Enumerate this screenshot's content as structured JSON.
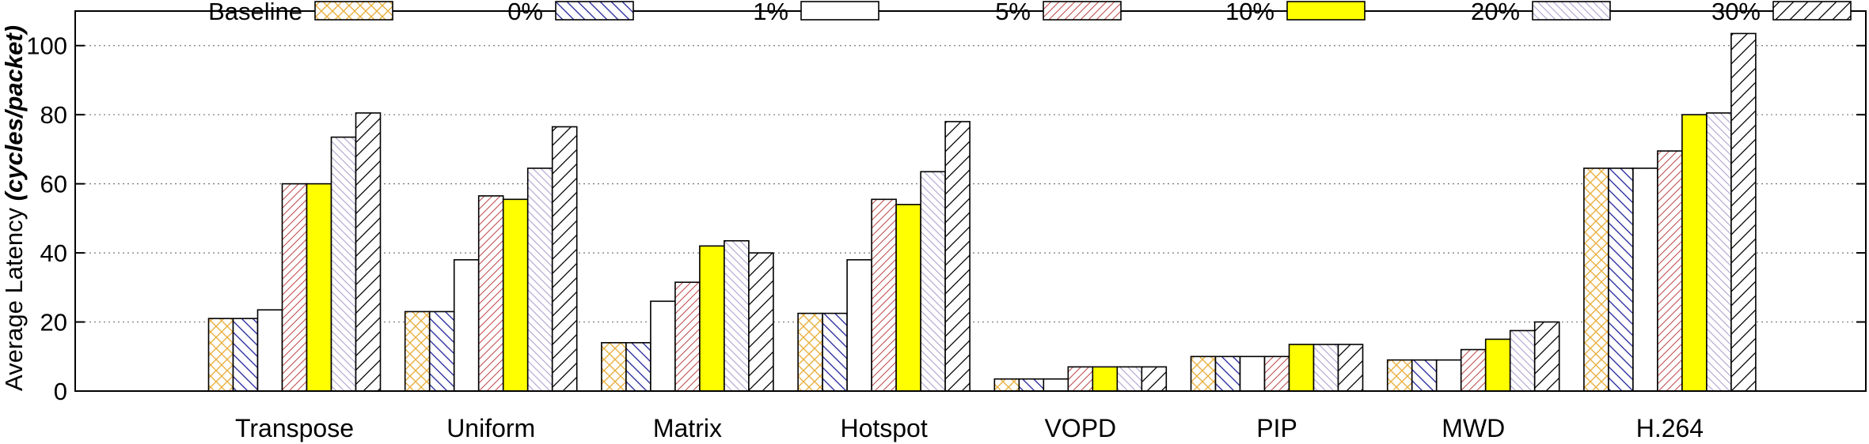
{
  "chart_data": {
    "type": "bar",
    "title": "",
    "xlabel": "",
    "ylabel_main": "Average Latency ",
    "ylabel_unit": "(cycles/packet)",
    "ylim": [
      0,
      110
    ],
    "yticks": [
      0,
      20,
      40,
      60,
      80,
      100
    ],
    "grid": "horizontal dotted",
    "legend_position": "top",
    "categories": [
      "Transpose",
      "Uniform",
      "Matrix",
      "Hotspot",
      "VOPD",
      "PIP",
      "MWD",
      "H.264"
    ],
    "series": [
      {
        "name": "Baseline",
        "pattern": "crosshatch",
        "color": "#e8b040",
        "values": [
          21,
          23,
          14,
          22.5,
          3.5,
          10,
          9,
          64.5
        ]
      },
      {
        "name": "0%",
        "pattern": "backslash",
        "color": "#3030a0",
        "values": [
          21,
          23,
          14,
          22.5,
          3.5,
          10,
          9,
          64.5
        ]
      },
      {
        "name": "1%",
        "pattern": "solid",
        "color": "#ffffff",
        "values": [
          23.5,
          38,
          26,
          38,
          3.5,
          10,
          9,
          64.5
        ]
      },
      {
        "name": "5%",
        "pattern": "slash",
        "color": "#c05050",
        "values": [
          60,
          56.5,
          31.5,
          55.5,
          7,
          10,
          12,
          69.5
        ]
      },
      {
        "name": "10%",
        "pattern": "solid",
        "color": "#ffff00",
        "values": [
          60,
          55.5,
          42,
          54,
          7,
          13.5,
          15,
          80
        ]
      },
      {
        "name": "20%",
        "pattern": "backslash",
        "color": "#b0a0d0",
        "values": [
          73.5,
          64.5,
          43.5,
          63.5,
          7,
          13.5,
          17.5,
          80.5
        ]
      },
      {
        "name": "30%",
        "pattern": "slash",
        "color": "#000000",
        "values": [
          80.5,
          76.5,
          40,
          78,
          7,
          13.5,
          20,
          103.5
        ]
      }
    ]
  }
}
